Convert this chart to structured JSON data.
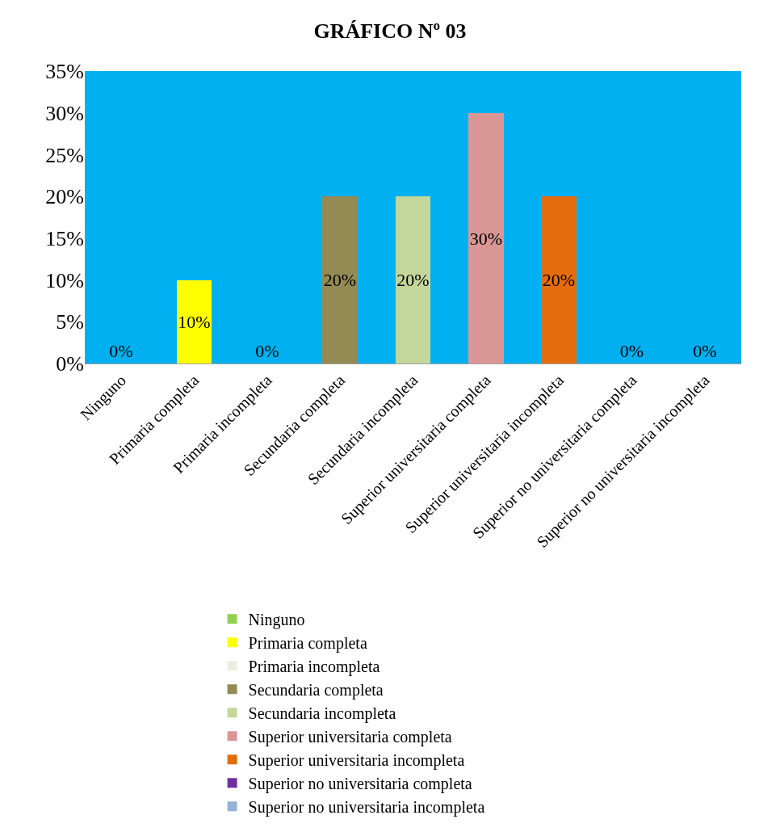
{
  "chart_data": {
    "type": "bar",
    "title": "GRÁFICO Nº 03",
    "categories": [
      "Ninguno",
      "Primaria completa",
      "Primaria incompleta",
      "Secundaria completa",
      "Secundaria incompleta",
      "Superior universitaria completa",
      "Superior universitaria incompleta",
      "Superior no universitaria completa",
      "Superior no universitaria incompleta"
    ],
    "series": [
      {
        "name": "Ninguno",
        "color": "#92d050",
        "values": [
          0,
          null,
          null,
          null,
          null,
          null,
          null,
          null,
          null
        ],
        "value_labels": [
          "0%",
          null,
          null,
          null,
          null,
          null,
          null,
          null,
          null
        ]
      },
      {
        "name": "Primaria completa",
        "color": "#ffff00",
        "values": [
          null,
          10,
          null,
          null,
          null,
          null,
          null,
          null,
          null
        ],
        "value_labels": [
          null,
          "10%",
          null,
          null,
          null,
          null,
          null,
          null,
          null
        ]
      },
      {
        "name": "Primaria incompleta",
        "color": "#eeece1",
        "values": [
          null,
          null,
          0,
          null,
          null,
          null,
          null,
          null,
          null
        ],
        "value_labels": [
          null,
          null,
          "0%",
          null,
          null,
          null,
          null,
          null,
          null
        ]
      },
      {
        "name": "Secundaria completa",
        "color": "#948a54",
        "values": [
          null,
          null,
          null,
          20,
          null,
          null,
          null,
          null,
          null
        ],
        "value_labels": [
          null,
          null,
          null,
          "20%",
          null,
          null,
          null,
          null,
          null
        ]
      },
      {
        "name": "Secundaria incompleta",
        "color": "#c4d79b",
        "values": [
          null,
          null,
          null,
          null,
          20,
          null,
          null,
          null,
          null
        ],
        "value_labels": [
          null,
          null,
          null,
          null,
          "20%",
          null,
          null,
          null,
          null
        ]
      },
      {
        "name": "Superior universitaria completa",
        "color": "#da9694",
        "values": [
          null,
          null,
          null,
          null,
          null,
          30,
          null,
          null,
          null
        ],
        "value_labels": [
          null,
          null,
          null,
          null,
          null,
          "30%",
          null,
          null,
          null
        ]
      },
      {
        "name": "Superior universitaria incompleta",
        "color": "#e46c0a",
        "values": [
          null,
          null,
          null,
          null,
          null,
          null,
          20,
          null,
          null
        ],
        "value_labels": [
          null,
          null,
          null,
          null,
          null,
          null,
          "20%",
          null,
          null
        ]
      },
      {
        "name": "Superior no universitaria completa",
        "color": "#7030a0",
        "values": [
          null,
          null,
          null,
          null,
          null,
          null,
          null,
          0,
          null
        ],
        "value_labels": [
          null,
          null,
          null,
          null,
          null,
          null,
          null,
          "0%",
          null
        ]
      },
      {
        "name": "Superior no universitaria incompleta",
        "color": "#95b3d7",
        "values": [
          null,
          null,
          null,
          null,
          null,
          null,
          null,
          null,
          0
        ],
        "value_labels": [
          null,
          null,
          null,
          null,
          null,
          null,
          null,
          null,
          "0%"
        ]
      }
    ],
    "ylim": [
      0,
      35
    ],
    "yticks": [
      {
        "value": 0,
        "label": "0%"
      },
      {
        "value": 5,
        "label": "5%"
      },
      {
        "value": 10,
        "label": "10%"
      },
      {
        "value": 15,
        "label": "15%"
      },
      {
        "value": 20,
        "label": "20%"
      },
      {
        "value": 25,
        "label": "25%"
      },
      {
        "value": 30,
        "label": "30%"
      },
      {
        "value": 35,
        "label": "35%"
      }
    ],
    "grid": false,
    "legend": "bottom"
  }
}
